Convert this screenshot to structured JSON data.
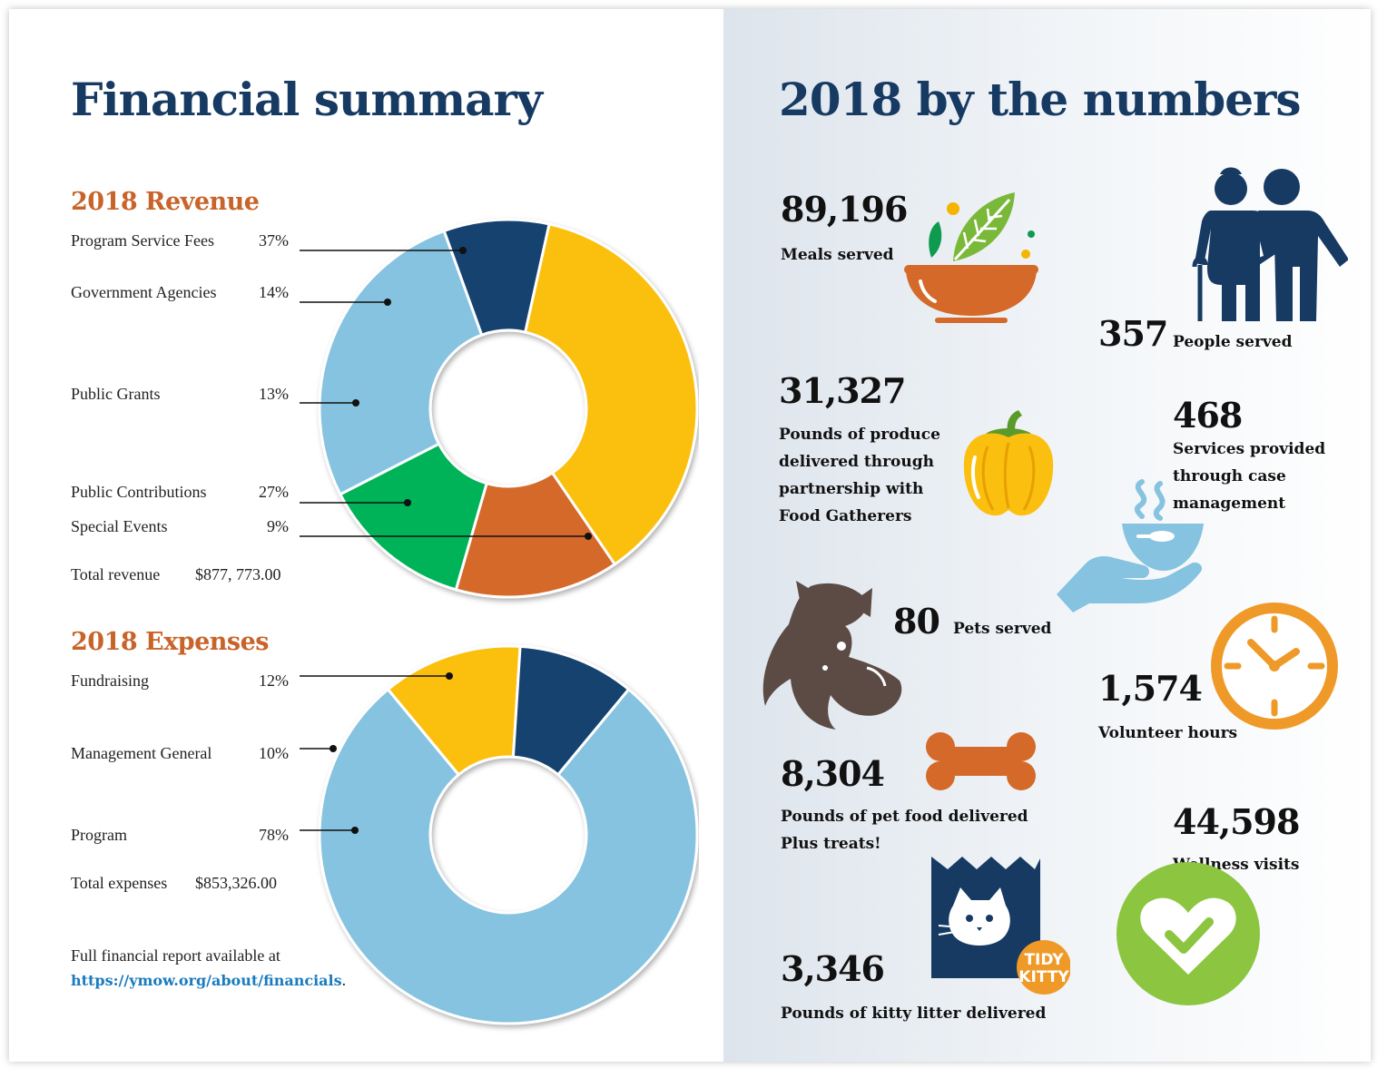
{
  "left": {
    "title": "Financial summary",
    "revenue_heading": "2018 Revenue",
    "expenses_heading": "2018 Expenses",
    "total_revenue_label": "Total revenue",
    "total_revenue_value": "$877, 773.00",
    "total_expenses_label": "Total expenses",
    "total_expenses_value": "$853,326.00",
    "report_note": "Full financial report available at",
    "report_link": "https://ymow.org/about/financials",
    "report_period": "."
  },
  "chart_data": [
    {
      "type": "pie",
      "title": "2018 Revenue",
      "categories": [
        "Program Service Fees",
        "Government Agencies",
        "Public Grants",
        "Public Contributions",
        "Special Events"
      ],
      "values": [
        37,
        14,
        13,
        27,
        9
      ],
      "labels": [
        "37%",
        "14%",
        "13%",
        "27%",
        "9%"
      ],
      "colors": [
        "#fbbf10",
        "#d4692a",
        "#00b259",
        "#86c3e0",
        "#134370"
      ],
      "total": "$877, 773.00",
      "legend": "left"
    },
    {
      "type": "pie",
      "title": "2018 Expenses",
      "categories": [
        "Fundraising",
        "Management General",
        "Program"
      ],
      "values": [
        12,
        10,
        78
      ],
      "labels": [
        "12%",
        "10%",
        "78%"
      ],
      "colors": [
        "#fbbf10",
        "#134370",
        "#86c3e0"
      ],
      "total": "$853,326.00",
      "legend": "left"
    }
  ],
  "right": {
    "title": "2018 by the numbers",
    "stats": {
      "meals": {
        "value": "89,196",
        "label": "Meals served"
      },
      "people": {
        "value": "357",
        "label": "People served"
      },
      "produce": {
        "value": "31,327",
        "lines": [
          "Pounds of produce",
          "delivered through",
          "partnership with",
          "Food Gatherers"
        ]
      },
      "services": {
        "value": "468",
        "lines": [
          "Services provided",
          "through case",
          "management"
        ]
      },
      "pets": {
        "value": "80",
        "label": "Pets served"
      },
      "volunteer": {
        "value": "1,574",
        "label": "Volunteer hours"
      },
      "petfood": {
        "value": "8,304",
        "lines": [
          "Pounds of pet food delivered",
          "Plus treats!"
        ]
      },
      "wellness": {
        "value": "44,598",
        "label": "Wellness visits"
      },
      "litter": {
        "value": "3,346",
        "label": "Pounds of kitty litter delivered"
      }
    },
    "litter_bag_text": [
      "TIDY",
      "KITTY"
    ]
  },
  "icons": [
    "salad-bowl-icon",
    "elderly-couple-icon",
    "bell-pepper-icon",
    "hand-bowl-icon",
    "dog-cat-icon",
    "clock-icon",
    "bone-icon",
    "litter-bag-icon",
    "heart-check-icon"
  ]
}
